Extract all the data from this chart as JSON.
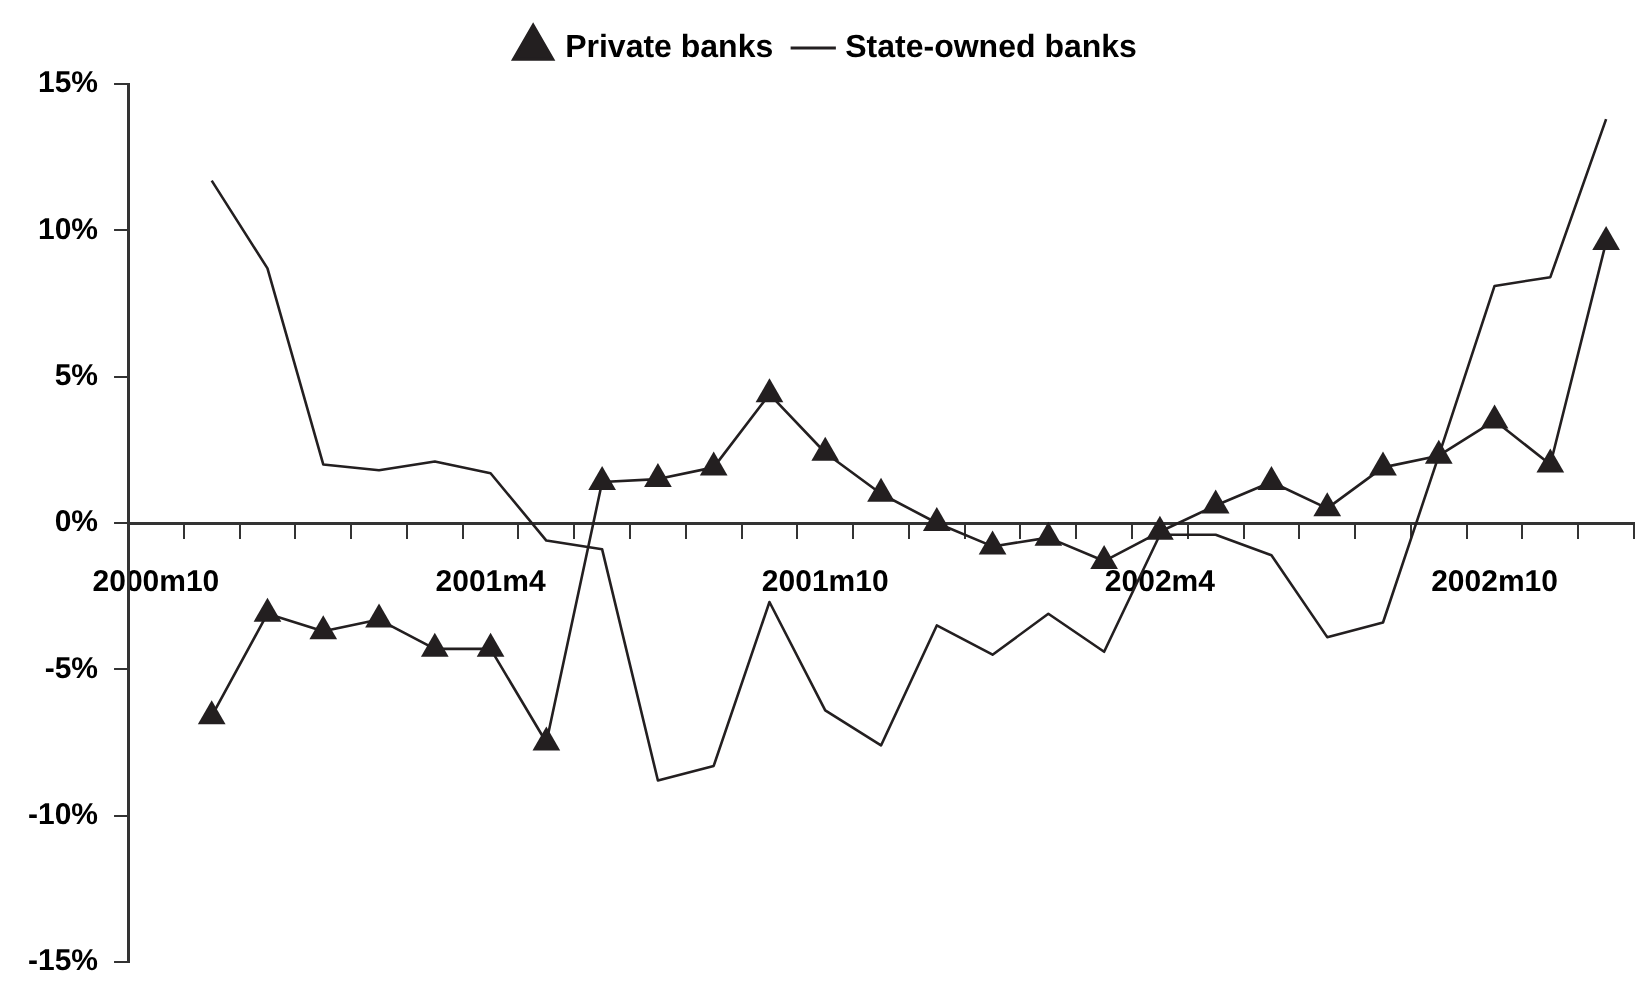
{
  "chart_data": {
    "type": "line",
    "categories": [
      "2000m10",
      null,
      null,
      null,
      null,
      null,
      "2001m4",
      null,
      null,
      null,
      null,
      null,
      "2001m10",
      null,
      null,
      null,
      null,
      null,
      "2002m4",
      null,
      null,
      null,
      null,
      null,
      "2002m10",
      null,
      null
    ],
    "series": [
      {
        "name": "Private banks",
        "color": "#231f20",
        "marker": "triangle",
        "values": [
          null,
          -6.6,
          -3.1,
          -3.7,
          -3.3,
          -4.3,
          -4.3,
          -7.5,
          1.4,
          1.5,
          1.9,
          4.4,
          2.4,
          1.0,
          0.0,
          -0.8,
          -0.5,
          -1.3,
          -0.3,
          0.6,
          1.4,
          0.5,
          1.9,
          2.3,
          3.5,
          2.0,
          9.6
        ]
      },
      {
        "name": "State-owned banks",
        "color": "#231f20",
        "marker": "none",
        "values": [
          null,
          11.7,
          8.7,
          2.0,
          1.8,
          2.1,
          1.7,
          -0.6,
          -0.9,
          -8.8,
          -8.3,
          -2.7,
          -6.4,
          -7.6,
          -3.5,
          -4.5,
          -3.1,
          -4.4,
          -0.4,
          -0.4,
          -1.1,
          -3.9,
          -3.4,
          2.3,
          8.1,
          8.4,
          13.8
        ]
      }
    ],
    "ylim": [
      -15,
      15
    ],
    "yticks": [
      {
        "value": -15,
        "label": "-15%"
      },
      {
        "value": -10,
        "label": "-10%"
      },
      {
        "value": -5,
        "label": "-5%"
      },
      {
        "value": 0,
        "label": "0%"
      },
      {
        "value": 5,
        "label": "5%"
      },
      {
        "value": 10,
        "label": "10%"
      },
      {
        "value": 15,
        "label": "15%"
      }
    ],
    "grid": false,
    "legend": "top",
    "line_style": "solid"
  }
}
